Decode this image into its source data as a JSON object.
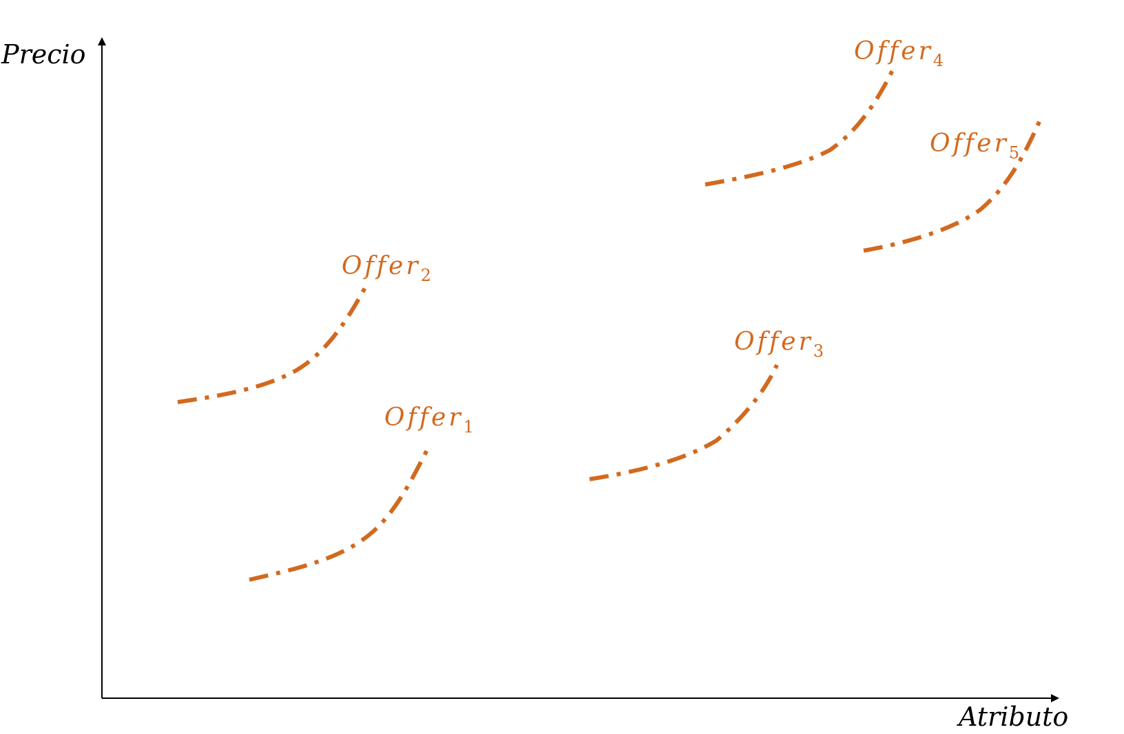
{
  "diagram": {
    "accent_color": "#D2691E",
    "axis_color": "#000000",
    "y_axis": {
      "label": "Precio"
    },
    "x_axis": {
      "label": "Atributo"
    },
    "offers": [
      {
        "base": "Offer",
        "sub": "1"
      },
      {
        "base": "Offer",
        "sub": "2"
      },
      {
        "base": "Offer",
        "sub": "3"
      },
      {
        "base": "Offer",
        "sub": "4"
      },
      {
        "base": "Offer",
        "sub": "5"
      }
    ]
  }
}
